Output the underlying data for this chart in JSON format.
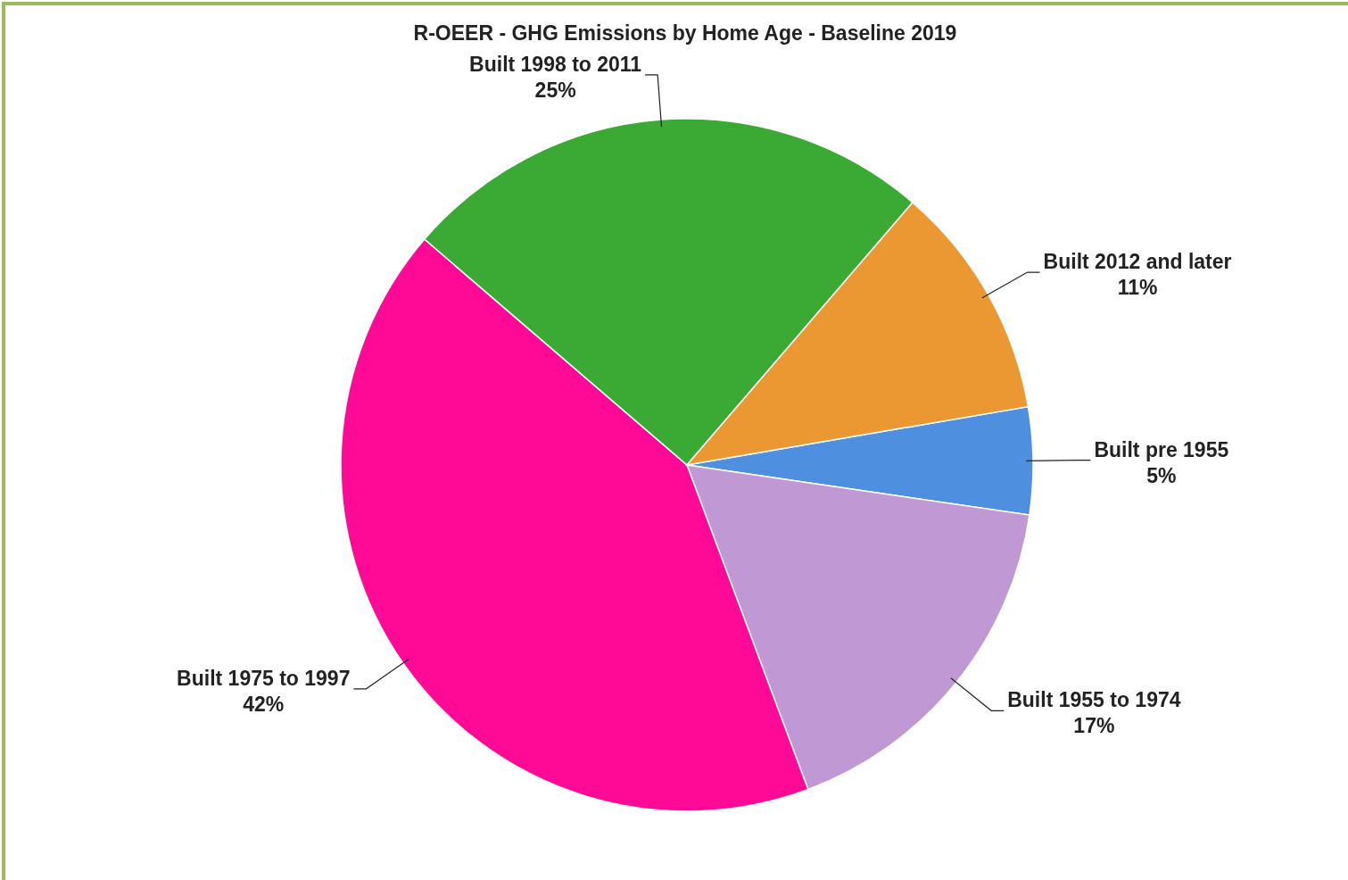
{
  "chart_data": {
    "type": "pie",
    "title": "R-OEER - GHG Emissions by Home Age - Baseline 2019",
    "categories": [
      "Built pre 1955",
      "Built 1955 to 1974",
      "Built 1975 to 1997",
      "Built 1998 to 2011",
      "Built 2012 and later"
    ],
    "values": [
      5,
      17,
      42,
      25,
      11
    ],
    "colors": [
      "#4f8fe0",
      "#c098d4",
      "#ff0a97",
      "#3aaa35",
      "#eb9832"
    ],
    "value_labels": [
      "5%",
      "17%",
      "42%",
      "25%",
      "11%"
    ],
    "legend": false
  }
}
